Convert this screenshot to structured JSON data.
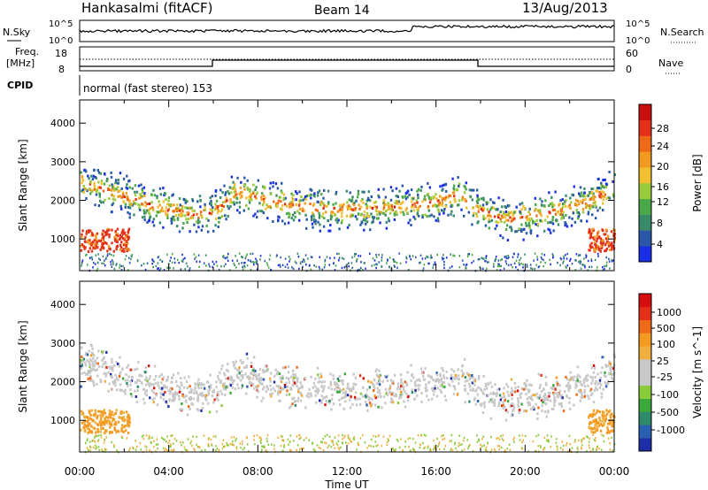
{
  "header": {
    "station": "Hankasalmi (fitACF)",
    "beam": "Beam 14",
    "date": "13/Aug/2013"
  },
  "strips": {
    "nsky_label": "N.Sky",
    "nsky_tick_top": "10^5",
    "nsky_tick_bottom": "10^0",
    "nsearch_label": "N.Search",
    "nsearch_tick_top": "10^5",
    "nsearch_tick_bottom": "10^0",
    "freq_label_1": "Freq.",
    "freq_label_2": "[MHz]",
    "freq_tick_top": "18",
    "freq_tick_bottom": "8",
    "nave_label": "Nave",
    "nave_tick_top": "60",
    "nave_tick_bottom": "0",
    "cpid_label": "CPID",
    "cpid_text": "normal (fast stereo) 153"
  },
  "chart_data": [
    {
      "type": "heatmap",
      "name": "power",
      "xlabel": "Time UT",
      "ylabel": "Slant Range [km]",
      "x_ticks": [
        "00:00",
        "04:00",
        "08:00",
        "12:00",
        "16:00",
        "20:00",
        "00:00"
      ],
      "xlim_hours": [
        0,
        24
      ],
      "y_ticks": [
        1000,
        2000,
        3000,
        4000
      ],
      "ylim": [
        180,
        4600
      ],
      "colorbar_label": "Power [dB]",
      "colorbar_ticks": [
        "4",
        "8",
        "12",
        "16",
        "20",
        "24",
        "28"
      ],
      "colorbar_colors": [
        "#1a2ee6",
        "#2a57a8",
        "#3a8a6a",
        "#4aa84a",
        "#9acb3a",
        "#f0c030",
        "#f29a20",
        "#ee6a18",
        "#e43018",
        "#c80f0f"
      ],
      "backscatter_band": {
        "time_hours": [
          0,
          1,
          2,
          3,
          4,
          5,
          6,
          7,
          8,
          9,
          10,
          11,
          12,
          13,
          14,
          15,
          16,
          17,
          18,
          19,
          20,
          21,
          22,
          23,
          24
        ],
        "range_km": [
          2500,
          2350,
          2150,
          1950,
          1800,
          1680,
          1700,
          2250,
          2100,
          1950,
          1850,
          1800,
          1800,
          1810,
          1870,
          1920,
          2000,
          2150,
          1750,
          1550,
          1600,
          1700,
          1850,
          2050,
          2350
        ]
      }
    },
    {
      "type": "heatmap",
      "name": "velocity",
      "xlabel": "Time UT",
      "ylabel": "Slant Range [km]",
      "x_ticks": [
        "00:00",
        "04:00",
        "08:00",
        "12:00",
        "16:00",
        "20:00",
        "00:00"
      ],
      "xlim_hours": [
        0,
        24
      ],
      "y_ticks": [
        1000,
        2000,
        3000,
        4000
      ],
      "ylim": [
        180,
        4600
      ],
      "colorbar_label": "Velocity [m s^-1]",
      "colorbar_ticks": [
        "1000",
        "500",
        "100",
        "25",
        "-25",
        "-100",
        "-500",
        "-1000"
      ],
      "colorbar_colors": [
        "#1e2ea8",
        "#2a60b0",
        "#2e8a6a",
        "#3aa83a",
        "#8acb3a",
        "#c8c8c8",
        "#c8c8c8",
        "#f0b040",
        "#f59a20",
        "#ee6a18",
        "#e43018",
        "#d80e0e"
      ],
      "backscatter_band": {
        "time_hours": [
          0,
          1,
          2,
          3,
          4,
          5,
          6,
          7,
          8,
          9,
          10,
          11,
          12,
          13,
          14,
          15,
          16,
          17,
          18,
          19,
          20,
          21,
          22,
          23,
          24
        ],
        "range_km": [
          2500,
          2350,
          2150,
          1950,
          1800,
          1680,
          1700,
          2250,
          2100,
          1950,
          1850,
          1800,
          1800,
          1810,
          1870,
          1920,
          2000,
          2150,
          1750,
          1550,
          1600,
          1700,
          1850,
          2050,
          2350
        ]
      }
    }
  ]
}
